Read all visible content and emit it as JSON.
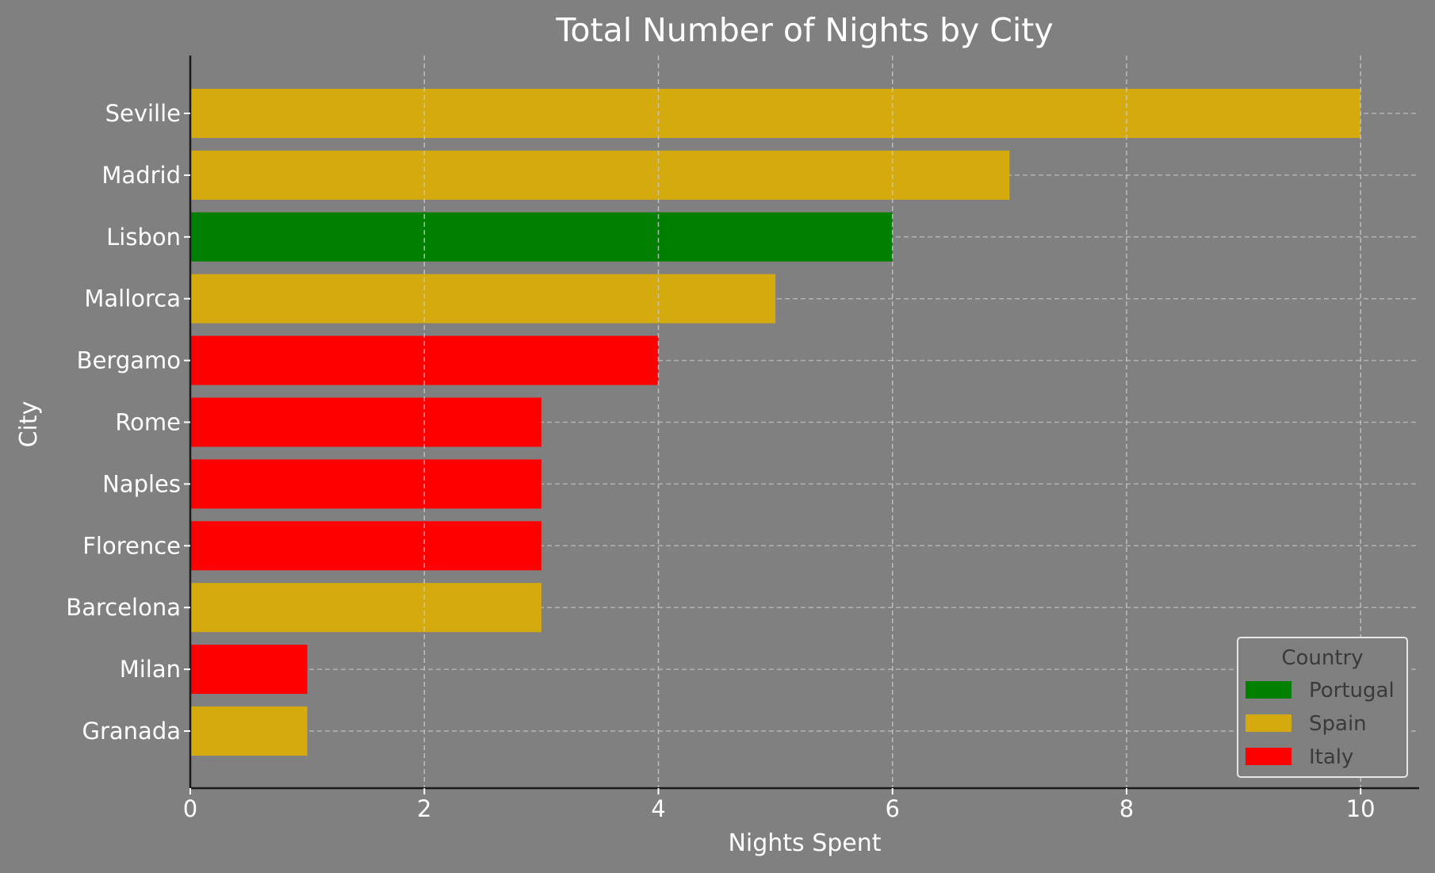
{
  "chart_data": {
    "type": "bar",
    "orientation": "horizontal",
    "title": "Total Number of Nights by City",
    "xlabel": "Nights Spent",
    "ylabel": "City",
    "xlim": [
      0,
      10.5
    ],
    "xticks": [
      "0",
      "2",
      "4",
      "6",
      "8",
      "10"
    ],
    "grid": true,
    "categories": [
      "Seville",
      "Madrid",
      "Lisbon",
      "Mallorca",
      "Bergamo",
      "Rome",
      "Naples",
      "Florence",
      "Barcelona",
      "Milan",
      "Granada"
    ],
    "values": [
      10,
      7,
      6,
      5,
      4,
      3,
      3,
      3,
      3,
      1,
      1
    ],
    "bar_country": [
      "Spain",
      "Spain",
      "Portugal",
      "Spain",
      "Italy",
      "Italy",
      "Italy",
      "Italy",
      "Spain",
      "Italy",
      "Spain"
    ],
    "legend": {
      "title": "Country",
      "placement": "lower-right",
      "entries": [
        {
          "name": "Portugal",
          "color": "#008000"
        },
        {
          "name": "Spain",
          "color": "#d4aa0f"
        },
        {
          "name": "Italy",
          "color": "#ff0000"
        }
      ]
    },
    "colors": {
      "background": "#808080",
      "axis": "#1a1a1a",
      "grid": "#c8c8c8"
    }
  }
}
